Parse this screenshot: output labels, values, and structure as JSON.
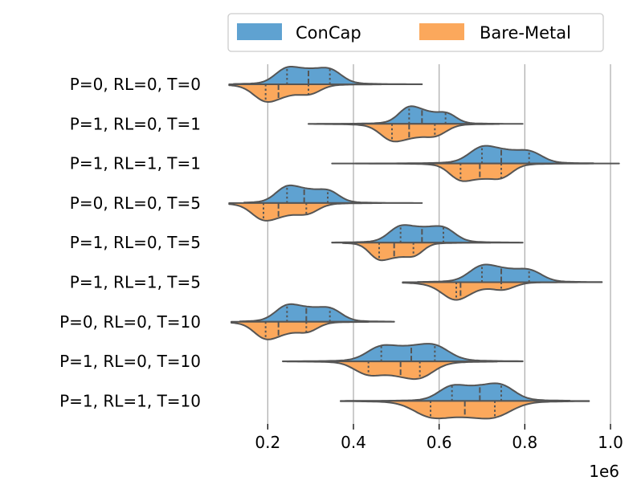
{
  "chart_data": {
    "type": "violin",
    "orientation": "horizontal",
    "split": true,
    "inner": "quartile",
    "x_multiplier_label": "1e6",
    "xlim": [
      0.1,
      1.0
    ],
    "x_ticks": [
      0.2,
      0.4,
      0.6,
      0.8,
      1.0
    ],
    "x_tick_labels": [
      "0.2",
      "0.4",
      "0.6",
      "0.8",
      "1.0"
    ],
    "grid": "vertical",
    "legend_position": "top",
    "categories": [
      "P=0, RL=0, T=0",
      "P=1, RL=0, T=1",
      "P=1, RL=1, T=1",
      "P=0, RL=0, T=5",
      "P=1, RL=0, T=5",
      "P=1, RL=1, T=5",
      "P=0, RL=0, T=10",
      "P=1, RL=0, T=10",
      "P=1, RL=1, T=10"
    ],
    "series": [
      {
        "name": "ConCap",
        "color": "#5fa2d1",
        "side": "upper",
        "quartiles": [
          [
            0.245,
            0.295,
            0.345
          ],
          [
            0.53,
            0.56,
            0.615
          ],
          [
            0.7,
            0.745,
            0.81
          ],
          [
            0.245,
            0.285,
            0.34
          ],
          [
            0.51,
            0.56,
            0.61
          ],
          [
            0.7,
            0.745,
            0.81
          ],
          [
            0.245,
            0.29,
            0.345
          ],
          [
            0.465,
            0.535,
            0.59
          ],
          [
            0.63,
            0.695,
            0.745
          ]
        ],
        "ranges": [
          [
            0.12,
            0.56
          ],
          [
            0.315,
            0.795
          ],
          [
            0.405,
            0.96
          ],
          [
            0.145,
            0.56
          ],
          [
            0.35,
            0.795
          ],
          [
            0.55,
            0.98
          ],
          [
            0.135,
            0.495
          ],
          [
            0.235,
            0.795
          ],
          [
            0.38,
            0.905
          ]
        ]
      },
      {
        "name": "Bare-Metal",
        "color": "#fba85c",
        "side": "lower",
        "quartiles": [
          [
            0.195,
            0.225,
            0.295
          ],
          [
            0.49,
            0.53,
            0.59
          ],
          [
            0.65,
            0.695,
            0.745
          ],
          [
            0.19,
            0.225,
            0.29
          ],
          [
            0.46,
            0.495,
            0.54
          ],
          [
            0.64,
            0.65,
            0.745
          ],
          [
            0.195,
            0.225,
            0.29
          ],
          [
            0.435,
            0.51,
            0.555
          ],
          [
            0.58,
            0.66,
            0.73
          ]
        ],
        "ranges": [
          [
            0.11,
            0.465
          ],
          [
            0.295,
            0.74
          ],
          [
            0.35,
            1.02
          ],
          [
            0.11,
            0.465
          ],
          [
            0.375,
            0.72
          ],
          [
            0.515,
            0.95
          ],
          [
            0.115,
            0.435
          ],
          [
            0.245,
            0.735
          ],
          [
            0.37,
            0.95
          ]
        ]
      }
    ]
  }
}
